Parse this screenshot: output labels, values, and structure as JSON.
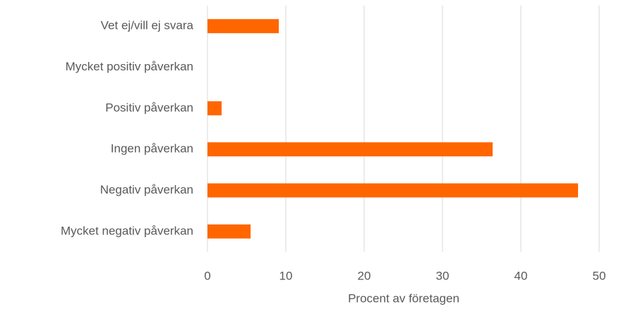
{
  "chart_data": {
    "type": "hbar",
    "categories": [
      "Vet ej/vill ej svara",
      "Mycket positiv påverkan",
      "Positiv påverkan",
      "Ingen påverkan",
      "Negativ påverkan",
      "Mycket negativ påverkan"
    ],
    "values": [
      9.1,
      0,
      1.8,
      36.4,
      47.3,
      5.5
    ],
    "color": "#ff6600",
    "x_label": "Procent av företagen",
    "xlim": [
      0,
      50
    ],
    "xticks": [
      0,
      10,
      20,
      30,
      40,
      50
    ],
    "grid": true
  }
}
